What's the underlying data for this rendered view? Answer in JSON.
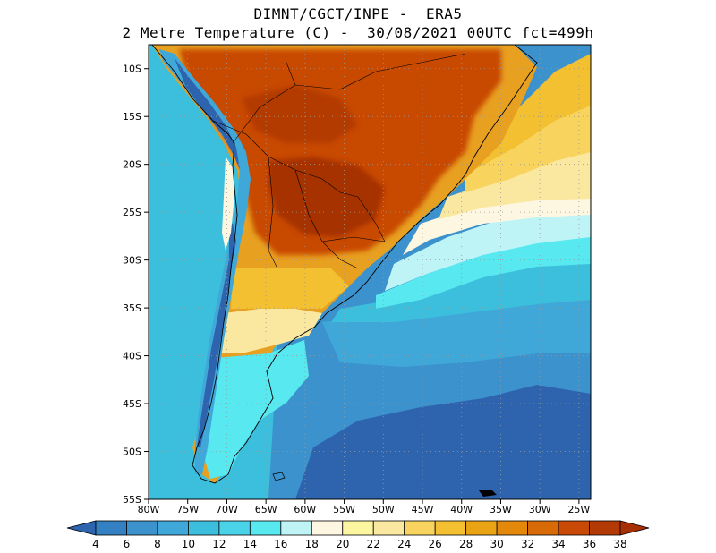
{
  "title": {
    "line1": "DIMNT/CGCT/INPE -  ERA5",
    "line2": "2 Metre Temperature (C) -  30/08/2021 00UTC fct=499h"
  },
  "map": {
    "lat_labels": [
      "10S",
      "15S",
      "20S",
      "25S",
      "30S",
      "35S",
      "40S",
      "45S",
      "50S",
      "55S"
    ],
    "lon_labels": [
      "80W",
      "75W",
      "70W",
      "65W",
      "60W",
      "55W",
      "50W",
      "45W",
      "40W",
      "35W",
      "30W",
      "25W"
    ],
    "lat_range": [
      -55,
      -7.5
    ],
    "lon_range": [
      -80,
      -23.5
    ],
    "regions": [
      {
        "name": "south-pacific-ocean",
        "color": "#3cbfdc"
      },
      {
        "name": "south-atlantic-deep",
        "color": "#2e64ae"
      },
      {
        "name": "south-atlantic-mid",
        "color": "#3b92cd"
      },
      {
        "name": "atlantic-cyan-band",
        "color": "#57e8f0"
      },
      {
        "name": "atlantic-warm-band",
        "color": "#fbe8a0"
      },
      {
        "name": "tropical-land-hot",
        "color": "#c84a06"
      },
      {
        "name": "brazil-warm",
        "color": "#e8a020"
      },
      {
        "name": "andes-cold",
        "color": "#2e64ae"
      }
    ]
  },
  "colorbar": {
    "labels": [
      "4",
      "6",
      "8",
      "10",
      "12",
      "14",
      "16",
      "18",
      "20",
      "22",
      "24",
      "26",
      "28",
      "30",
      "32",
      "34",
      "36",
      "38"
    ],
    "colors": [
      "#2e64ae",
      "#3380c2",
      "#3b92cd",
      "#40a8d8",
      "#3cbfdc",
      "#4ad3e8",
      "#57e8f0",
      "#bff4f7",
      "#fdf6e0",
      "#fdf6a0",
      "#fbe8a0",
      "#f8d45e",
      "#f2c030",
      "#eaa312",
      "#e3880a",
      "#d86a08",
      "#c84a06",
      "#b33a04",
      "#a63003"
    ]
  }
}
